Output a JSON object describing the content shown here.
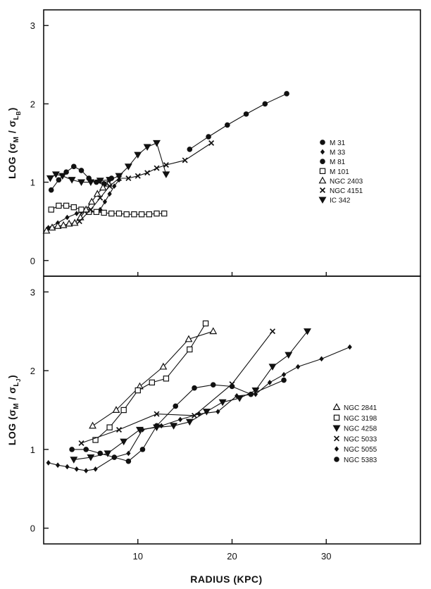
{
  "chart_data": [
    {
      "type": "line",
      "panel": "top",
      "ylabel": "LOG (σ_M / σ_L_B)",
      "ylabel_main": "LOG (σ",
      "ylabel_sub1": "M",
      "ylabel_mid": " / σ",
      "ylabel_sub2": "L",
      "ylabel_sub3": "B",
      "ylabel_end": ")",
      "xlabel": "",
      "xlim": [
        0,
        40
      ],
      "ylim": [
        -0.2,
        3.2
      ],
      "yticks": [
        0,
        1,
        2,
        3
      ],
      "ytick_labels": [
        "0",
        "1",
        "2",
        "3"
      ],
      "grid": false,
      "legend_position": "right",
      "series": [
        {
          "name": "M 31",
          "marker": "dot",
          "x": [
            15.5,
            17.5,
            19.5,
            21.5,
            23.5,
            25.8
          ],
          "y": [
            1.42,
            1.58,
            1.73,
            1.87,
            2.0,
            2.13
          ]
        },
        {
          "name": "M 33",
          "marker": "diamond",
          "x": [
            0.5,
            1.5,
            2.5,
            3.5,
            4.0,
            4.5,
            5.0,
            5.5,
            6.0,
            6.5,
            7.0,
            7.5,
            8.0
          ],
          "y": [
            0.42,
            0.48,
            0.55,
            0.6,
            0.62,
            0.63,
            0.63,
            0.62,
            0.65,
            0.75,
            0.85,
            0.95,
            1.03
          ]
        },
        {
          "name": "M 81",
          "marker": "dot",
          "x": [
            0.8,
            1.6,
            2.4,
            3.2,
            4.0,
            4.8,
            5.6,
            6.4,
            7.2
          ],
          "y": [
            0.9,
            1.03,
            1.13,
            1.2,
            1.15,
            1.05,
            1.0,
            0.98,
            1.05
          ]
        },
        {
          "name": "M 101",
          "marker": "square",
          "x": [
            0.8,
            1.6,
            2.4,
            3.2,
            4.0,
            4.8,
            5.6,
            6.4,
            7.2,
            8.0,
            8.8,
            9.6,
            10.4,
            11.2,
            12.0,
            12.8
          ],
          "y": [
            0.65,
            0.7,
            0.7,
            0.68,
            0.65,
            0.62,
            0.62,
            0.61,
            0.6,
            0.6,
            0.59,
            0.59,
            0.59,
            0.59,
            0.6,
            0.6
          ]
        },
        {
          "name": "NGC 2403",
          "marker": "triangle-up",
          "x": [
            0.3,
            0.9,
            1.5,
            2.1,
            2.7,
            3.3,
            3.9,
            4.5,
            5.1,
            5.7,
            6.3,
            6.9
          ],
          "y": [
            0.38,
            0.42,
            0.44,
            0.45,
            0.47,
            0.48,
            0.55,
            0.65,
            0.75,
            0.85,
            0.93,
            0.98
          ]
        },
        {
          "name": "NGC 4151",
          "marker": "cross",
          "x": [
            3.8,
            5.0,
            6.0,
            7.0,
            8.0,
            9.0,
            10.0,
            11.0,
            12.0,
            13.0,
            15.0,
            17.8
          ],
          "y": [
            0.5,
            0.65,
            0.8,
            0.95,
            1.05,
            1.05,
            1.08,
            1.12,
            1.18,
            1.22,
            1.28,
            1.5
          ]
        },
        {
          "name": "IC 342",
          "marker": "triangle-down",
          "x": [
            0.7,
            1.3,
            2.0,
            3.0,
            4.0,
            5.0,
            6.0,
            7.0,
            8.0,
            9.0,
            10.0,
            11.0,
            12.0,
            13.0
          ],
          "y": [
            1.05,
            1.1,
            1.08,
            1.03,
            1.0,
            1.0,
            1.02,
            1.03,
            1.08,
            1.2,
            1.35,
            1.45,
            1.5,
            1.1
          ]
        }
      ]
    },
    {
      "type": "line",
      "panel": "bottom",
      "ylabel": "LOG (σ_M / σ_L_J)",
      "ylabel_main": "LOG (σ",
      "ylabel_sub1": "M",
      "ylabel_mid": " / σ",
      "ylabel_sub2": "L",
      "ylabel_sub3": "J",
      "ylabel_end": ")",
      "xlabel": "RADIUS (KPC)",
      "xlim": [
        0,
        40
      ],
      "ylim": [
        -0.2,
        3.2
      ],
      "xticks": [
        10,
        20,
        30
      ],
      "xtick_labels": [
        "10",
        "20",
        "30"
      ],
      "yticks": [
        0,
        1,
        2,
        3
      ],
      "ytick_labels": [
        "0",
        "1",
        "2",
        "3"
      ],
      "grid": false,
      "legend_position": "right",
      "series": [
        {
          "name": "NGC 2841",
          "marker": "triangle-up",
          "x": [
            5.2,
            7.7,
            10.2,
            12.7,
            15.4,
            18.0
          ],
          "y": [
            1.3,
            1.5,
            1.8,
            2.05,
            2.4,
            2.5
          ]
        },
        {
          "name": "NGC 3198",
          "marker": "square",
          "x": [
            5.5,
            7.0,
            8.5,
            10.0,
            11.5,
            13.0,
            15.5,
            17.2
          ],
          "y": [
            1.12,
            1.28,
            1.5,
            1.75,
            1.85,
            1.9,
            2.27,
            2.6
          ]
        },
        {
          "name": "NGC 4258",
          "marker": "triangle-down",
          "x": [
            3.2,
            5.0,
            6.8,
            8.5,
            10.2,
            12.0,
            13.8,
            15.5,
            17.3,
            19.0,
            20.8,
            22.5,
            24.3,
            26.0,
            28.0
          ],
          "y": [
            0.87,
            0.9,
            0.95,
            1.1,
            1.25,
            1.28,
            1.3,
            1.35,
            1.48,
            1.6,
            1.65,
            1.75,
            2.05,
            2.2,
            2.5
          ]
        },
        {
          "name": "NGC 5033",
          "marker": "cross",
          "x": [
            4.0,
            8.0,
            12.0,
            16.0,
            20.0,
            24.3
          ],
          "y": [
            1.08,
            1.25,
            1.45,
            1.43,
            1.83,
            2.5
          ]
        },
        {
          "name": "NGC 5055",
          "marker": "diamond",
          "x": [
            0.5,
            1.5,
            2.5,
            3.5,
            4.5,
            5.5,
            7.5,
            9.0,
            10.5,
            12.5,
            14.5,
            16.5,
            18.5,
            20.5,
            22.5,
            24.0,
            25.5,
            27.0,
            29.5,
            32.5
          ],
          "y": [
            0.83,
            0.8,
            0.78,
            0.75,
            0.73,
            0.75,
            0.9,
            0.95,
            1.25,
            1.3,
            1.38,
            1.45,
            1.48,
            1.68,
            1.7,
            1.85,
            1.95,
            2.05,
            2.15,
            2.3
          ]
        },
        {
          "name": "NGC 5383",
          "marker": "dot",
          "x": [
            3.0,
            4.5,
            6.0,
            7.5,
            9.0,
            10.5,
            12.0,
            14.0,
            16.0,
            18.0,
            20.0,
            22.0,
            25.5
          ],
          "y": [
            1.0,
            1.0,
            0.95,
            0.9,
            0.85,
            1.0,
            1.3,
            1.55,
            1.78,
            1.82,
            1.8,
            1.7,
            1.88
          ]
        }
      ]
    }
  ]
}
